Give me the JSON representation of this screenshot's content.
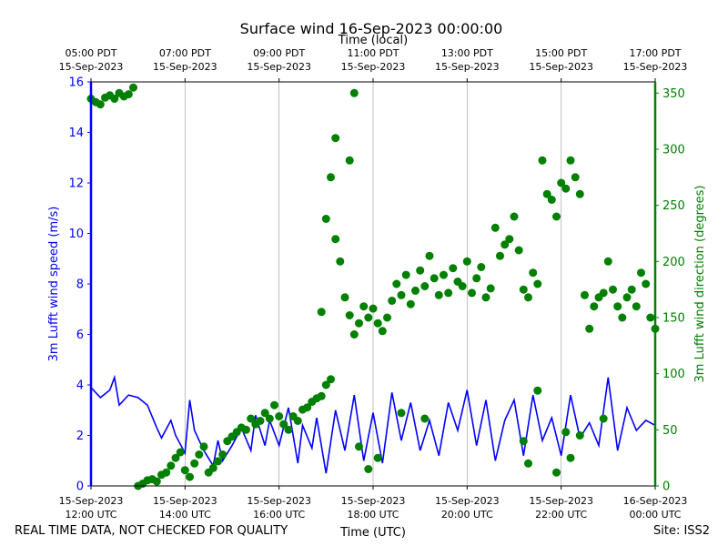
{
  "chart_data": {
    "type": "scatter",
    "title": "Surface wind 16-Sep-2023 00:00:00",
    "top_axis_label": "Time (local)",
    "xlabel": "Time (UTC)",
    "ylabel": "3m Lufft wind speed (m/s)",
    "y2label": "3m Lufft wind direction (degrees)",
    "x_unit": "hours UTC since 15-Sep-2023 00:00",
    "xlim": [
      12,
      24
    ],
    "ylim": [
      0,
      16
    ],
    "y2lim": [
      0,
      360
    ],
    "grid": "vertical",
    "colors": {
      "speed": "#0000ff",
      "direction": "#008000"
    },
    "x_ticks": [
      {
        "x": 12,
        "label": [
          "15-Sep-2023",
          "12:00 UTC"
        ]
      },
      {
        "x": 14,
        "label": [
          "15-Sep-2023",
          "14:00 UTC"
        ]
      },
      {
        "x": 16,
        "label": [
          "15-Sep-2023",
          "16:00 UTC"
        ]
      },
      {
        "x": 18,
        "label": [
          "15-Sep-2023",
          "18:00 UTC"
        ]
      },
      {
        "x": 20,
        "label": [
          "15-Sep-2023",
          "20:00 UTC"
        ]
      },
      {
        "x": 22,
        "label": [
          "15-Sep-2023",
          "22:00 UTC"
        ]
      },
      {
        "x": 24,
        "label": [
          "16-Sep-2023",
          "00:00 UTC"
        ]
      }
    ],
    "top_ticks": [
      {
        "x": 12,
        "label": [
          "05:00 PDT",
          "15-Sep-2023"
        ]
      },
      {
        "x": 14,
        "label": [
          "07:00 PDT",
          "15-Sep-2023"
        ]
      },
      {
        "x": 16,
        "label": [
          "09:00 PDT",
          "15-Sep-2023"
        ]
      },
      {
        "x": 18,
        "label": [
          "11:00 PDT",
          "15-Sep-2023"
        ]
      },
      {
        "x": 20,
        "label": [
          "13:00 PDT",
          "15-Sep-2023"
        ]
      },
      {
        "x": 22,
        "label": [
          "15:00 PDT",
          "15-Sep-2023"
        ]
      },
      {
        "x": 24,
        "label": [
          "17:00 PDT",
          "15-Sep-2023"
        ]
      }
    ],
    "y_ticks": [
      0,
      2,
      4,
      6,
      8,
      10,
      12,
      14,
      16
    ],
    "y2_ticks": [
      0,
      50,
      100,
      150,
      200,
      250,
      300,
      350
    ],
    "series": [
      {
        "name": "wind speed",
        "kind": "line",
        "axis": "left",
        "x": [
          12.0,
          12.2,
          12.4,
          12.5,
          12.6,
          12.8,
          13.0,
          13.2,
          13.4,
          13.5,
          13.7,
          13.8,
          14.0,
          14.1,
          14.2,
          14.4,
          14.6,
          14.7,
          14.8,
          15.0,
          15.2,
          15.4,
          15.5,
          15.7,
          15.8,
          16.0,
          16.2,
          16.4,
          16.5,
          16.7,
          16.8,
          17.0,
          17.2,
          17.4,
          17.6,
          17.8,
          18.0,
          18.2,
          18.4,
          18.6,
          18.8,
          19.0,
          19.2,
          19.4,
          19.6,
          19.8,
          20.0,
          20.2,
          20.4,
          20.6,
          20.8,
          21.0,
          21.2,
          21.4,
          21.6,
          21.8,
          22.0,
          22.2,
          22.4,
          22.6,
          22.8,
          23.0,
          23.2,
          23.4,
          23.6,
          23.8,
          24.0
        ],
        "values": [
          3.9,
          3.5,
          3.8,
          4.3,
          3.2,
          3.6,
          3.5,
          3.2,
          2.3,
          1.9,
          2.6,
          2.0,
          1.3,
          3.4,
          2.2,
          1.4,
          0.8,
          1.8,
          1.0,
          1.6,
          2.3,
          1.4,
          2.8,
          1.6,
          2.6,
          1.6,
          3.1,
          0.9,
          2.4,
          1.5,
          2.7,
          0.5,
          3.0,
          1.4,
          3.6,
          1.0,
          2.9,
          0.9,
          3.7,
          1.8,
          3.3,
          1.4,
          2.6,
          1.2,
          3.3,
          2.2,
          3.8,
          1.6,
          3.4,
          1.0,
          2.6,
          3.4,
          1.2,
          3.6,
          1.8,
          2.7,
          1.2,
          3.6,
          1.9,
          2.5,
          1.6,
          4.3,
          1.4,
          3.1,
          2.2,
          2.6,
          2.4
        ]
      },
      {
        "name": "wind direction",
        "kind": "scatter",
        "axis": "right",
        "x": [
          12.0,
          12.1,
          12.2,
          12.3,
          12.4,
          12.5,
          12.6,
          12.7,
          12.8,
          12.9,
          13.0,
          13.1,
          13.2,
          13.3,
          13.4,
          13.5,
          13.6,
          13.7,
          13.8,
          13.9,
          14.0,
          14.1,
          14.2,
          14.3,
          14.4,
          14.5,
          14.6,
          14.7,
          14.8,
          14.9,
          15.0,
          15.1,
          15.2,
          15.3,
          15.4,
          15.5,
          15.6,
          15.7,
          15.8,
          15.9,
          16.0,
          16.1,
          16.2,
          16.3,
          16.4,
          16.5,
          16.6,
          16.7,
          16.8,
          16.9,
          17.0,
          17.1,
          17.2,
          17.3,
          17.4,
          17.5,
          17.6,
          17.7,
          17.8,
          17.9,
          18.0,
          18.1,
          18.2,
          18.3,
          18.4,
          18.5,
          18.6,
          18.7,
          18.8,
          18.9,
          19.0,
          19.1,
          19.2,
          19.3,
          19.4,
          19.5,
          19.6,
          19.7,
          19.8,
          19.9,
          20.0,
          20.1,
          20.2,
          20.3,
          20.4,
          20.5,
          20.6,
          20.7,
          20.8,
          20.9,
          21.0,
          21.1,
          21.2,
          21.3,
          21.4,
          21.5,
          21.6,
          21.7,
          21.8,
          21.9,
          22.0,
          22.1,
          22.2,
          22.3,
          22.4,
          22.5,
          22.6,
          22.7,
          22.8,
          22.9,
          23.0,
          23.1,
          23.2,
          23.3,
          23.4,
          23.5,
          23.6,
          23.7,
          23.8,
          23.9,
          24.0,
          16.9,
          17.0,
          17.1,
          17.2,
          17.5,
          17.6,
          17.7,
          17.9,
          18.1,
          18.6,
          19.1,
          21.2,
          21.3,
          21.5,
          21.9,
          22.1,
          22.2,
          22.4,
          22.9
        ],
        "values": [
          345,
          342,
          340,
          346,
          348,
          345,
          350,
          347,
          349,
          355,
          0,
          2,
          5,
          6,
          4,
          10,
          12,
          18,
          25,
          30,
          14,
          8,
          20,
          28,
          35,
          12,
          16,
          22,
          28,
          40,
          44,
          48,
          52,
          50,
          60,
          55,
          58,
          65,
          60,
          72,
          62,
          55,
          50,
          62,
          58,
          68,
          70,
          75,
          78,
          80,
          90,
          95,
          220,
          200,
          168,
          152,
          135,
          145,
          160,
          150,
          158,
          145,
          138,
          150,
          165,
          180,
          170,
          188,
          162,
          174,
          192,
          178,
          205,
          185,
          170,
          188,
          172,
          194,
          182,
          178,
          200,
          172,
          185,
          195,
          168,
          176,
          230,
          205,
          215,
          220,
          240,
          210,
          175,
          168,
          190,
          180,
          290,
          260,
          255,
          240,
          270,
          265,
          290,
          275,
          260,
          170,
          140,
          160,
          168,
          172,
          200,
          175,
          160,
          150,
          168,
          175,
          160,
          190,
          180,
          150,
          140,
          155,
          238,
          275,
          310,
          290,
          350,
          35,
          15,
          25,
          65,
          60,
          40,
          20,
          85,
          12,
          48,
          25,
          45,
          60
        ]
      }
    ]
  },
  "footer": {
    "left": "REAL TIME DATA, NOT CHECKED FOR QUALITY",
    "site": "Site: ISS2"
  }
}
